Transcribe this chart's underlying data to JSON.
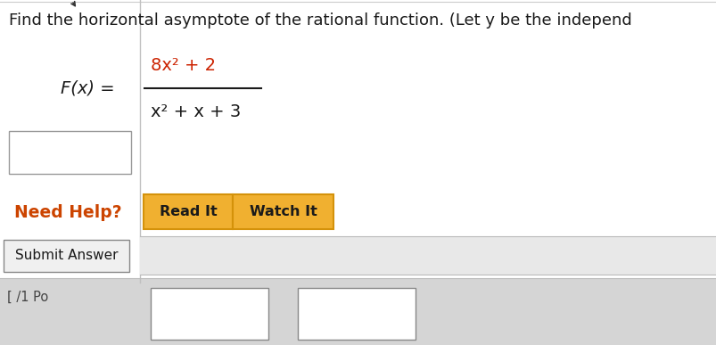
{
  "bg_color": "#e8e8e8",
  "panel_color": "#f5f5f5",
  "white_color": "#ffffff",
  "title_text": "Find the horizontal asymptote of the rational function. (Let y be the independ",
  "title_color": "#1a1a1a",
  "title_fontsize": 13.0,
  "numerator": "8x² + 2",
  "denominator": "x² + x + 3",
  "numerator_color": "#cc2200",
  "denominator_color": "#1a1a1a",
  "fx_color": "#1a1a1a",
  "input_box_color": "#ffffff",
  "input_box_edge": "#999999",
  "need_help_text": "Need Help?",
  "need_help_color": "#cc4400",
  "need_help_fontsize": 13.5,
  "btn_read_text": "Read It",
  "btn_watch_text": "Watch It",
  "btn_color": "#d4920a",
  "btn_fill": "#f0b030",
  "btn_text_color": "#1a1a1a",
  "btn_fontsize": 11.5,
  "submit_text": "Submit Answer",
  "submit_btn_color": "#f0f0f0",
  "submit_btn_edge": "#888888",
  "divider_color": "#c0c0c0",
  "bottom_label": "[ /1 Po",
  "bottom_label_color": "#444444",
  "cursor_color": "#333333"
}
